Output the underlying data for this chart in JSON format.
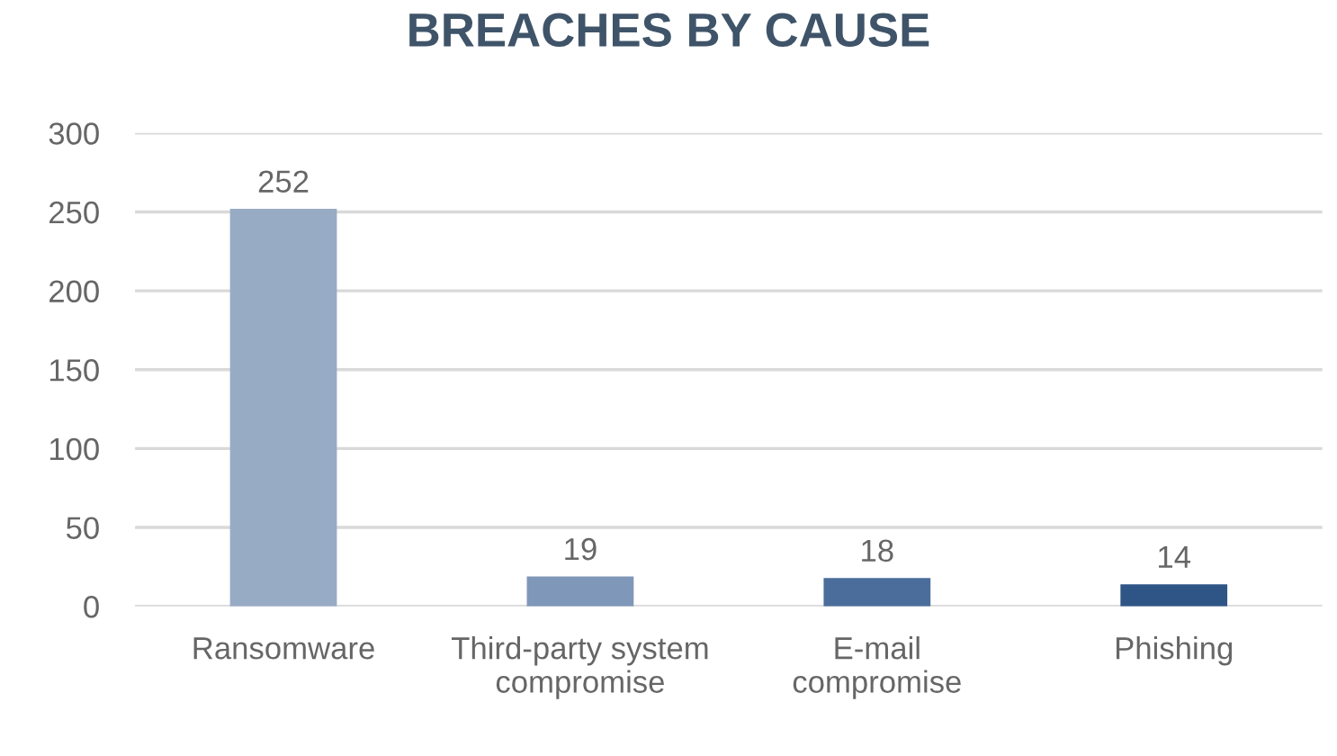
{
  "chart_data": {
    "type": "bar",
    "title": "BREACHES BY CAUSE",
    "categories": [
      "Ransomware",
      "Third-party system\ncompromise",
      "E-mail\ncompromise",
      "Phishing"
    ],
    "values": [
      252,
      19,
      18,
      14
    ],
    "colors": [
      "#98abc5",
      "#7f97b8",
      "#4a6d9b",
      "#2f5587"
    ],
    "ylim": [
      0,
      300
    ],
    "yticks": [
      0,
      50,
      100,
      150,
      200,
      250,
      300
    ],
    "grid": "y",
    "data_labels": true
  }
}
